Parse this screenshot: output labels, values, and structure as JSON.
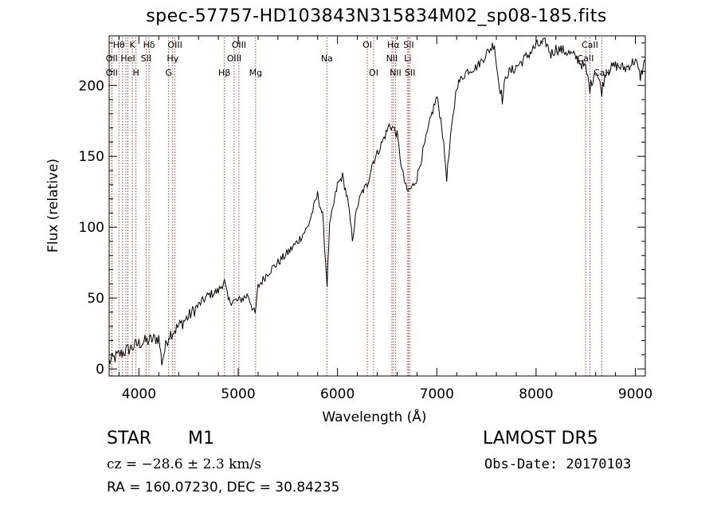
{
  "title": "spec-57757-HD103843N315834M02_sp08-185.fits",
  "footer": {
    "class": "STAR",
    "subclass": "M1",
    "survey": "LAMOST DR5",
    "cz": "cz = −28.6 ± 2.3 km/s",
    "obs_date": "Obs-Date: 20170103",
    "radec": "RA = 160.07230, DEC =  30.84235"
  },
  "colors": {
    "spectrum": "#000000",
    "line_marker": "#b22222",
    "frame": "#000000"
  },
  "chart_data": {
    "type": "line",
    "xlabel": "Wavelength (Å)",
    "ylabel": "Flux (relative)",
    "xlim": [
      3700,
      9100
    ],
    "ylim": [
      -5,
      235
    ],
    "xticks": [
      4000,
      5000,
      6000,
      7000,
      8000,
      9000
    ],
    "yticks": [
      0,
      50,
      100,
      150,
      200
    ],
    "grid": false,
    "series": [
      {
        "x": [
          3700,
          3800,
          3900,
          4000,
          4100,
          4200,
          4230,
          4300,
          4400,
          4500,
          4600,
          4700,
          4800,
          4860,
          4900,
          5000,
          5100,
          5170,
          5200,
          5300,
          5400,
          5500,
          5600,
          5700,
          5800,
          5850,
          5895,
          5920,
          5950,
          6000,
          6050,
          6100,
          6150,
          6200,
          6250,
          6300,
          6350,
          6400,
          6450,
          6500,
          6520,
          6563,
          6600,
          6650,
          6700,
          6750,
          6800,
          6850,
          6900,
          6950,
          7000,
          7050,
          7080,
          7100,
          7150,
          7200,
          7300,
          7400,
          7500,
          7580,
          7600,
          7620,
          7660,
          7700,
          7750,
          7800,
          7900,
          8000,
          8100,
          8150,
          8200,
          8300,
          8400,
          8500,
          8542,
          8600,
          8662,
          8700,
          8800,
          8900,
          9000,
          9050,
          9100
        ],
        "y": [
          5,
          10,
          14,
          18,
          20,
          22,
          5,
          24,
          30,
          37,
          45,
          52,
          55,
          62,
          48,
          48,
          52,
          38,
          58,
          68,
          75,
          82,
          90,
          100,
          123,
          108,
          60,
          100,
          112,
          130,
          136,
          120,
          92,
          115,
          125,
          130,
          145,
          152,
          160,
          168,
          172,
          170,
          165,
          140,
          125,
          128,
          135,
          150,
          165,
          180,
          192,
          172,
          150,
          135,
          170,
          200,
          210,
          213,
          222,
          230,
          215,
          205,
          190,
          208,
          210,
          213,
          220,
          228,
          230,
          222,
          226,
          224,
          220,
          212,
          198,
          212,
          196,
          210,
          214,
          212,
          218,
          206,
          218
        ]
      }
    ],
    "lines": [
      {
        "wave": 3798,
        "label": "Hθ",
        "row": 0
      },
      {
        "wave": 3727,
        "label": "OII",
        "row": 1
      },
      {
        "wave": 3727,
        "label": "OII",
        "row": 2
      },
      {
        "wave": 3835,
        "label": "",
        "row": 1
      },
      {
        "wave": 3868,
        "label": "",
        "row": 2
      },
      {
        "wave": 3889,
        "label": "HeI",
        "row": 1
      },
      {
        "wave": 3934,
        "label": "K",
        "row": 0
      },
      {
        "wave": 3970,
        "label": "H",
        "row": 2
      },
      {
        "wave": 4072,
        "label": "SII",
        "row": 1
      },
      {
        "wave": 4102,
        "label": "Hδ",
        "row": 0
      },
      {
        "wave": 4300,
        "label": "G",
        "row": 2
      },
      {
        "wave": 4340,
        "label": "Hγ",
        "row": 1
      },
      {
        "wave": 4363,
        "label": "OIII",
        "row": 0
      },
      {
        "wave": 4861,
        "label": "Hβ",
        "row": 2
      },
      {
        "wave": 4959,
        "label": "OIII",
        "row": 1
      },
      {
        "wave": 5007,
        "label": "OIII",
        "row": 0
      },
      {
        "wave": 5175,
        "label": "Mg",
        "row": 2
      },
      {
        "wave": 5893,
        "label": "Na",
        "row": 1
      },
      {
        "wave": 6300,
        "label": "OI",
        "row": 0
      },
      {
        "wave": 6364,
        "label": "OI",
        "row": 2
      },
      {
        "wave": 6548,
        "label": "NII",
        "row": 1
      },
      {
        "wave": 6563,
        "label": "Hα",
        "row": 0
      },
      {
        "wave": 6584,
        "label": "NII",
        "row": 2
      },
      {
        "wave": 6708,
        "label": "Li",
        "row": 1
      },
      {
        "wave": 6716,
        "label": "SII",
        "row": 0
      },
      {
        "wave": 6731,
        "label": "SII",
        "row": 2
      },
      {
        "wave": 8498,
        "label": "CaII",
        "row": 1
      },
      {
        "wave": 8542,
        "label": "CaII",
        "row": 0
      },
      {
        "wave": 8662,
        "label": "CaII",
        "row": 2
      }
    ]
  }
}
